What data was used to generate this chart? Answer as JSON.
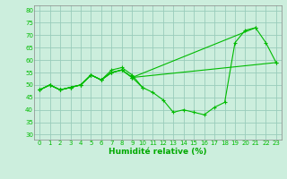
{
  "background_color": "#cceedd",
  "grid_color": "#99ccbb",
  "line_color": "#00bb00",
  "xlabel": "Humidité relative (%)",
  "xlabel_color": "#00aa00",
  "xlim": [
    -0.5,
    23.5
  ],
  "ylim": [
    28,
    82
  ],
  "yticks": [
    30,
    35,
    40,
    45,
    50,
    55,
    60,
    65,
    70,
    75,
    80
  ],
  "xticks": [
    0,
    1,
    2,
    3,
    4,
    5,
    6,
    7,
    8,
    9,
    10,
    11,
    12,
    13,
    14,
    15,
    16,
    17,
    18,
    19,
    20,
    21,
    22,
    23
  ],
  "series": [
    [
      48,
      50,
      48,
      49,
      50,
      54,
      52,
      56,
      57,
      54,
      49,
      47,
      44,
      39,
      40,
      39,
      38,
      41,
      43,
      67,
      72,
      73,
      67,
      59
    ],
    [
      48,
      50,
      48,
      49,
      50,
      54,
      52,
      55,
      56,
      53,
      49,
      null,
      null,
      null,
      null,
      null,
      null,
      null,
      null,
      null,
      null,
      null,
      null,
      null
    ],
    [
      48,
      50,
      48,
      49,
      50,
      54,
      52,
      55,
      56,
      53,
      null,
      null,
      null,
      null,
      null,
      null,
      null,
      null,
      null,
      null,
      null,
      null,
      null,
      59
    ],
    [
      48,
      50,
      48,
      49,
      50,
      54,
      52,
      55,
      56,
      53,
      null,
      null,
      null,
      null,
      null,
      null,
      null,
      null,
      null,
      null,
      null,
      73,
      null,
      null
    ]
  ]
}
